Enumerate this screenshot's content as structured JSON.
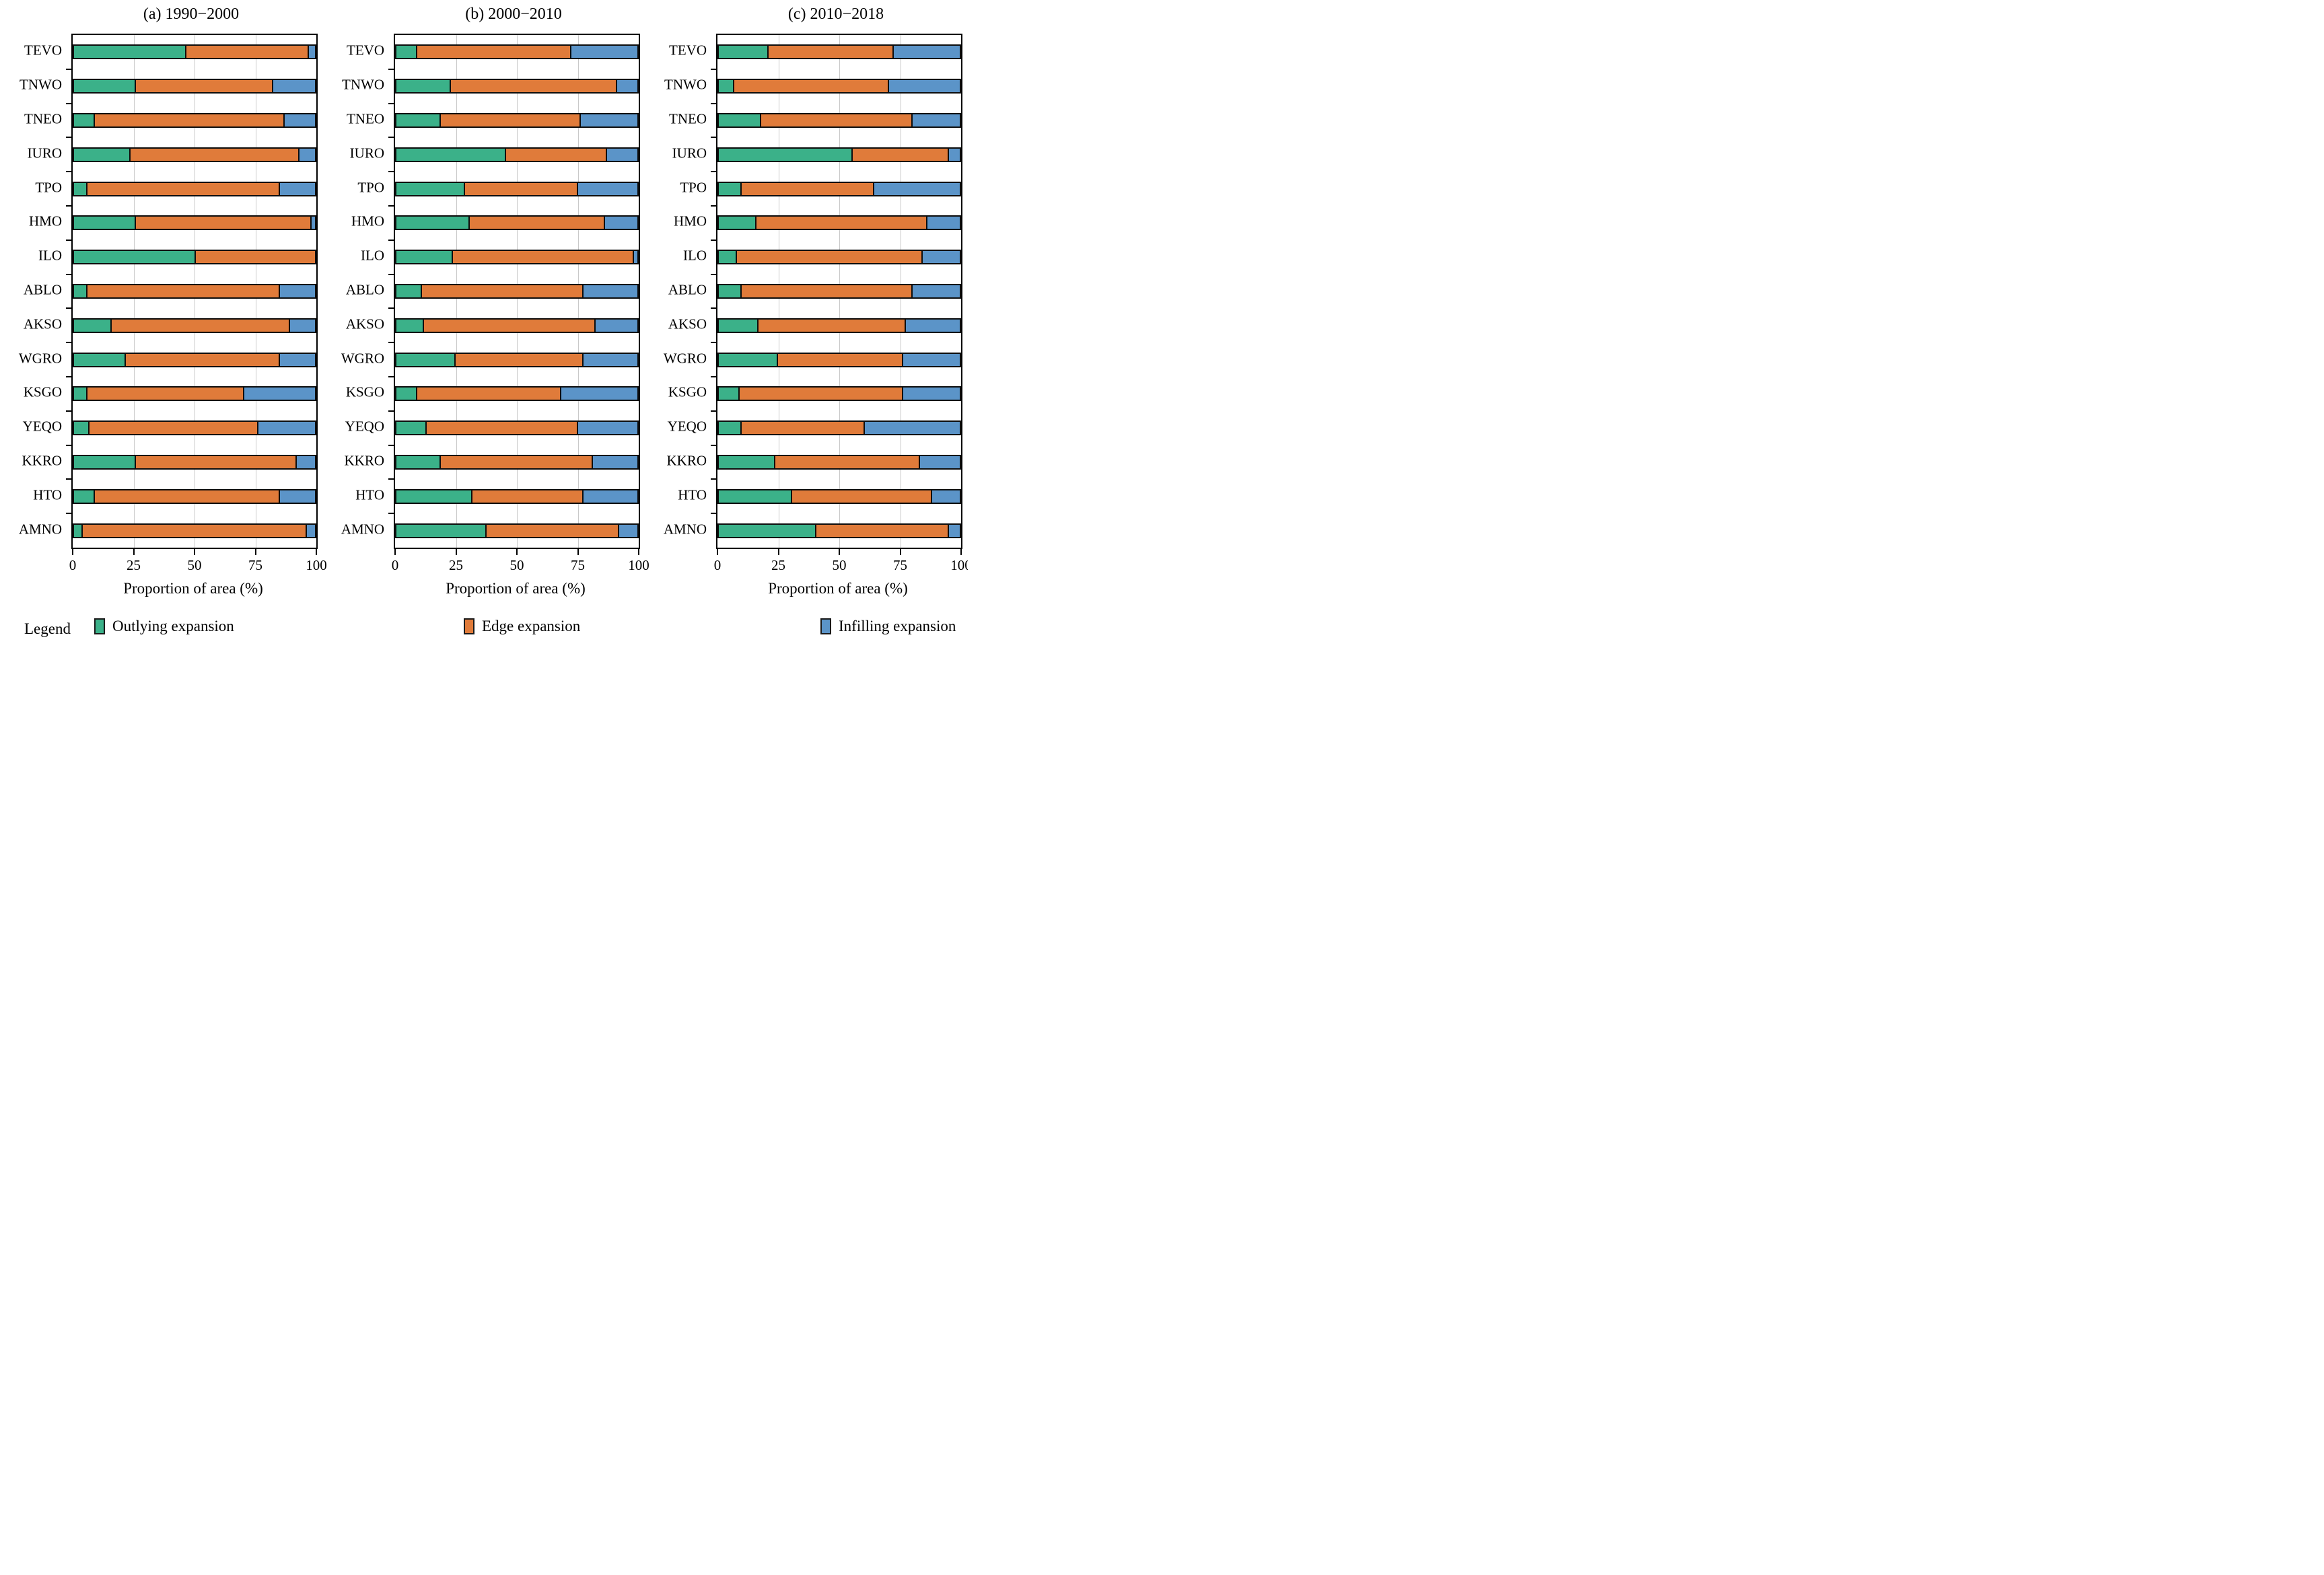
{
  "legend": {
    "label": "Legend",
    "items": [
      {
        "name": "Outlying expansion",
        "color": "#3BB189"
      },
      {
        "name": "Edge expansion",
        "color": "#E07B3A"
      },
      {
        "name": "Infilling expansion",
        "color": "#5B94C8"
      }
    ]
  },
  "colors": {
    "bar_border": "#0d0d0d",
    "gridline": "#c9c9c9",
    "frame": "#000000"
  },
  "chart_data": [
    {
      "type": "bar",
      "orientation": "horizontal",
      "stacked": true,
      "title": "(a) 1990−2000",
      "xlabel": "Proportion of area (%)",
      "xlim": [
        0,
        100
      ],
      "xticks": [
        0,
        25,
        50,
        75,
        100
      ],
      "grid": "vertical",
      "legend_position": "bottom",
      "categories": [
        "TEVO",
        "TNWO",
        "TNEO",
        "IURO",
        "TPO",
        "HMO",
        "ILO",
        "ABLO",
        "AKSO",
        "WGRO",
        "KSGO",
        "YEQO",
        "KKRO",
        "HTO",
        "AMNO"
      ],
      "series": [
        {
          "name": "Outlying expansion",
          "color": "#3BB189",
          "values": [
            46,
            25,
            8,
            23,
            5,
            25,
            50,
            5,
            15,
            21,
            5,
            6,
            25,
            8,
            3
          ]
        },
        {
          "name": "Edge expansion",
          "color": "#E07B3A",
          "values": [
            51,
            57,
            79,
            70,
            80,
            73,
            50,
            80,
            74,
            64,
            65,
            70,
            67,
            77,
            93
          ]
        },
        {
          "name": "Infilling expansion",
          "color": "#5B94C8",
          "values": [
            3,
            18,
            13,
            7,
            15,
            2,
            0,
            15,
            11,
            15,
            30,
            24,
            8,
            15,
            4
          ]
        }
      ]
    },
    {
      "type": "bar",
      "orientation": "horizontal",
      "stacked": true,
      "title": "(b) 2000−2010",
      "xlabel": "Proportion of area (%)",
      "xlim": [
        0,
        100
      ],
      "xticks": [
        0,
        25,
        50,
        75,
        100
      ],
      "grid": "vertical",
      "legend_position": "bottom",
      "categories": [
        "TEVO",
        "TNWO",
        "TNEO",
        "IURO",
        "TPO",
        "HMO",
        "ILO",
        "ABLO",
        "AKSO",
        "WGRO",
        "KSGO",
        "YEQO",
        "KKRO",
        "HTO",
        "AMNO"
      ],
      "series": [
        {
          "name": "Outlying expansion",
          "color": "#3BB189",
          "values": [
            8,
            22,
            18,
            45,
            28,
            30,
            23,
            10,
            11,
            24,
            8,
            12,
            18,
            31,
            37
          ]
        },
        {
          "name": "Edge expansion",
          "color": "#E07B3A",
          "values": [
            64,
            69,
            58,
            42,
            47,
            56,
            75,
            67,
            71,
            53,
            60,
            63,
            63,
            46,
            55
          ]
        },
        {
          "name": "Infilling expansion",
          "color": "#5B94C8",
          "values": [
            28,
            9,
            24,
            13,
            25,
            14,
            2,
            23,
            18,
            23,
            32,
            25,
            19,
            23,
            8
          ]
        }
      ]
    },
    {
      "type": "bar",
      "orientation": "horizontal",
      "stacked": true,
      "title": "(c) 2010−2018",
      "xlabel": "Proportion of area (%)",
      "xlim": [
        0,
        100
      ],
      "xticks": [
        0,
        25,
        50,
        75,
        100
      ],
      "grid": "vertical",
      "legend_position": "bottom",
      "categories": [
        "TEVO",
        "TNWO",
        "TNEO",
        "IURO",
        "TPO",
        "HMO",
        "ILO",
        "ABLO",
        "AKSO",
        "WGRO",
        "KSGO",
        "YEQO",
        "KKRO",
        "HTO",
        "AMNO"
      ],
      "series": [
        {
          "name": "Outlying expansion",
          "color": "#3BB189",
          "values": [
            20,
            6,
            17,
            55,
            9,
            15,
            7,
            9,
            16,
            24,
            8,
            9,
            23,
            30,
            40
          ]
        },
        {
          "name": "Edge expansion",
          "color": "#E07B3A",
          "values": [
            52,
            64,
            63,
            40,
            55,
            71,
            77,
            71,
            61,
            52,
            68,
            51,
            60,
            58,
            55
          ]
        },
        {
          "name": "Infilling expansion",
          "color": "#5B94C8",
          "values": [
            28,
            30,
            20,
            5,
            36,
            14,
            16,
            20,
            23,
            24,
            24,
            40,
            17,
            12,
            5
          ]
        }
      ]
    }
  ]
}
